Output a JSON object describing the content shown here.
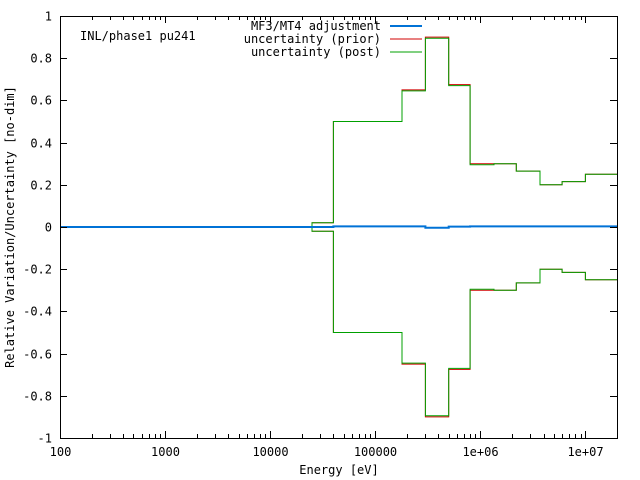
{
  "chart_data": {
    "type": "line",
    "title": "",
    "annotation": "INL/phase1 pu241",
    "xlabel": "Energy [eV]",
    "ylabel": "Relative Variation/Uncertainty [no-dim]",
    "x_scale": "log",
    "xlim": [
      100,
      20000000
    ],
    "ylim": [
      -1,
      1
    ],
    "x_ticks": [
      {
        "value": 100,
        "label": "100"
      },
      {
        "value": 1000,
        "label": "1000"
      },
      {
        "value": 10000,
        "label": "10000"
      },
      {
        "value": 100000,
        "label": "100000"
      },
      {
        "value": 1000000,
        "label": "1e+06"
      },
      {
        "value": 10000000,
        "label": "1e+07"
      }
    ],
    "y_ticks": [
      {
        "value": 1,
        "label": "1"
      },
      {
        "value": 0.8,
        "label": "0.8"
      },
      {
        "value": 0.6,
        "label": "0.6"
      },
      {
        "value": 0.4,
        "label": "0.4"
      },
      {
        "value": 0.2,
        "label": "0.2"
      },
      {
        "value": 0,
        "label": "0"
      },
      {
        "value": -0.2,
        "label": "-0.2"
      },
      {
        "value": -0.4,
        "label": "-0.4"
      },
      {
        "value": -0.6,
        "label": "-0.6"
      },
      {
        "value": -0.8,
        "label": "-0.8"
      },
      {
        "value": -1,
        "label": "-1"
      }
    ],
    "grid": false,
    "legend_position": "top-right",
    "bin_edges": [
      100,
      25000,
      40000,
      180000,
      300000,
      500000,
      800000,
      1350000,
      2200000,
      3700000,
      6000000,
      10000000,
      20000000
    ],
    "series": [
      {
        "name": "MF3/MT4 adjustment",
        "color": "#0072d6",
        "style": "step",
        "values": [
          0,
          0,
          0.003,
          0.003,
          -0.004,
          0.002,
          0.003,
          0.003,
          0.003,
          0.003,
          0.003,
          0.003
        ]
      },
      {
        "name": "uncertainty (prior)",
        "color": "#d00000",
        "style": "step-band",
        "values": [
          0,
          0.02,
          0.5,
          0.65,
          0.9,
          0.675,
          0.3,
          0.3,
          0.265,
          0.2,
          0.215,
          0.25
        ]
      },
      {
        "name": "uncertainty (post)",
        "color": "#00a000",
        "style": "step-band",
        "values": [
          0,
          0.02,
          0.5,
          0.645,
          0.895,
          0.67,
          0.295,
          0.3,
          0.265,
          0.2,
          0.215,
          0.25
        ]
      }
    ]
  }
}
